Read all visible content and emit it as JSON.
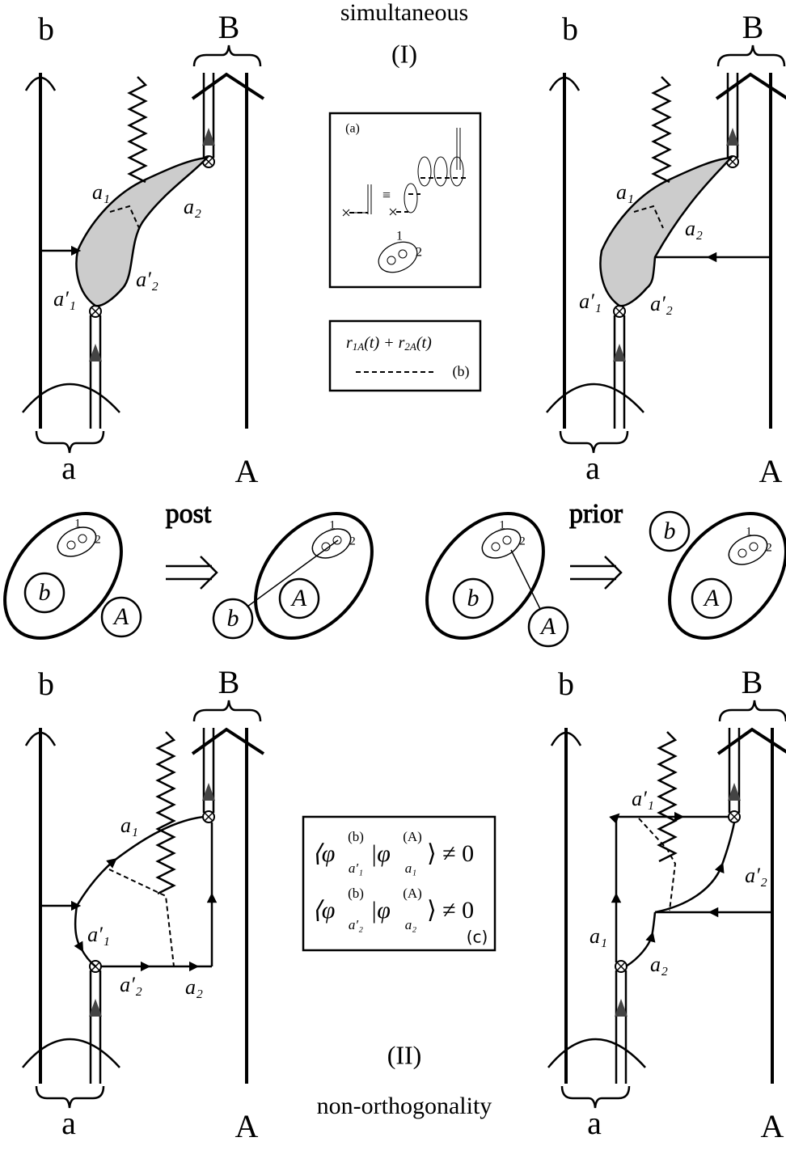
{
  "header": {
    "title": "simultaneous",
    "part": "(I)"
  },
  "panels": [
    {
      "b": "b",
      "B": "B",
      "a": "a",
      "A": "A",
      "a1": "a₁",
      "a2": "a₂",
      "a1p": "a′₁",
      "a2p": "a′₂"
    },
    {
      "b": "b",
      "B": "B",
      "a": "a",
      "A": "A",
      "a1": "a₁",
      "a2": "a₂",
      "a1p": "a′₁",
      "a2p": "a′₂"
    },
    {
      "b": "b",
      "B": "B",
      "a": "a",
      "A": "A",
      "a1": "a₁",
      "a2": "a₂",
      "a1p": "a′₁",
      "a2p": "a′₂"
    },
    {
      "b": "b",
      "B": "B",
      "a": "a",
      "A": "A",
      "a1": "a₁",
      "a2": "a₂",
      "a1p": "a′₁",
      "a2p": "a′₂"
    }
  ],
  "inset": {
    "label": "(a)",
    "equiv": "≡",
    "particle_1": "1",
    "particle_2": "2"
  },
  "legend": {
    "formula": [
      "r",
      "1A",
      "(t) + r",
      "2A",
      "(t)"
    ],
    "dashed_label": "(b)"
  },
  "transitions": [
    {
      "label": "post",
      "before": {
        "b": "b",
        "A": "A",
        "particle_1": "1",
        "particle_2": "2"
      },
      "after": {
        "b": "b",
        "A": "A",
        "particle_1": "1",
        "particle_2": "2"
      }
    },
    {
      "label": "prior",
      "before": {
        "b": "b",
        "A": "A",
        "particle_1": "1",
        "particle_2": "2"
      },
      "after": {
        "b": "b",
        "A": "A",
        "particle_1": "1",
        "particle_2": "2"
      }
    }
  ],
  "overlap": {
    "lines": [
      [
        "⟨φ",
        "(b)",
        "a′₁",
        "|φ",
        "(A)",
        "a₁",
        "⟩ ≠ 0"
      ],
      [
        "⟨φ",
        "(b)",
        "a′₂",
        "|φ",
        "(A)",
        "a₂",
        "⟩ ≠ 0"
      ]
    ],
    "label": "(c)"
  },
  "footer": {
    "part": "(II)",
    "title": "non-orthogonality"
  }
}
